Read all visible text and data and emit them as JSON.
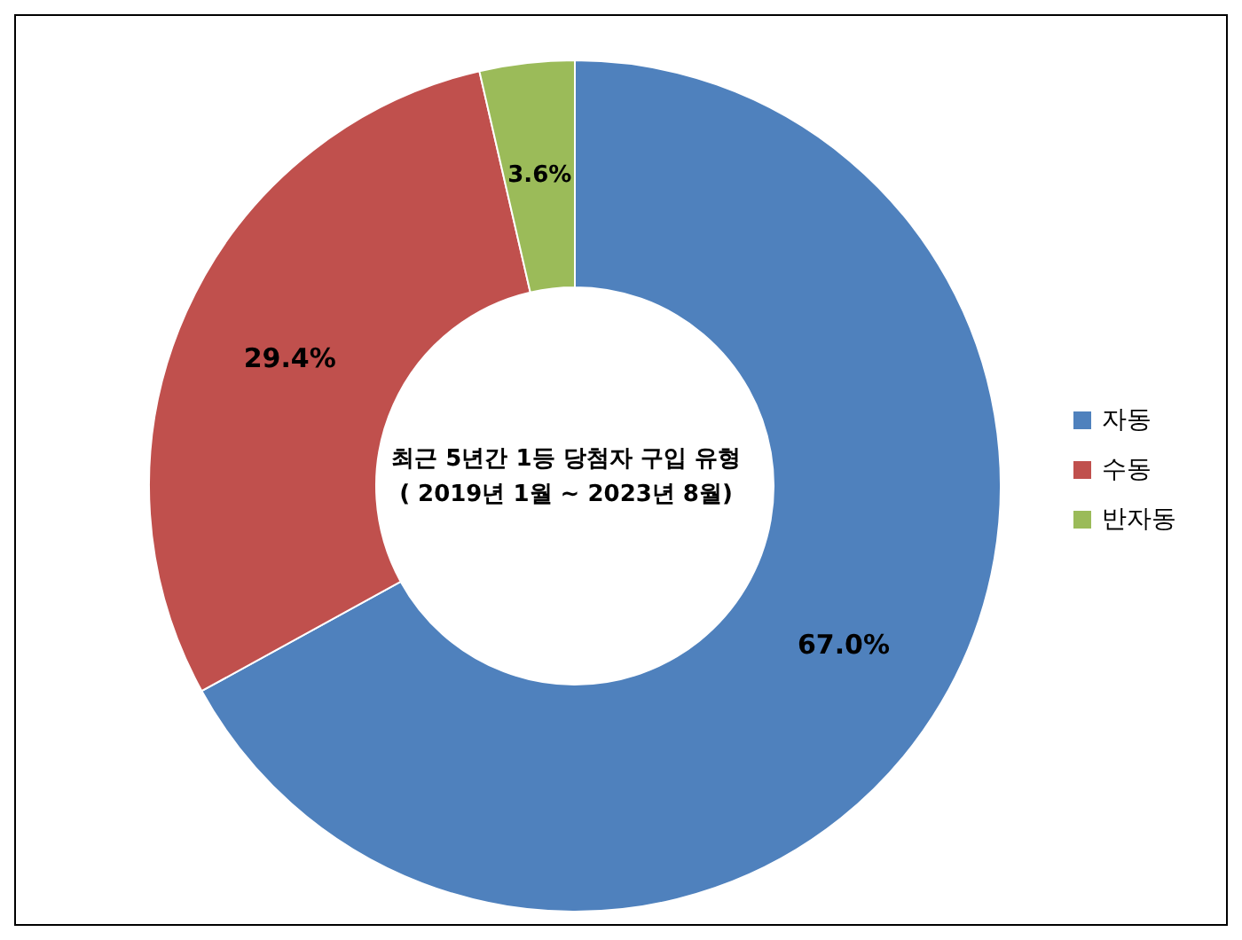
{
  "chart_data": {
    "type": "donut",
    "title": "최근 5년간 1등 당첨자 구입 유형",
    "subtitle": "( 2019년 1월 ~ 2023년 8월)",
    "categories": [
      "자동",
      "수동",
      "반자동"
    ],
    "values": [
      67.0,
      29.4,
      3.6
    ],
    "colors": [
      "#4f81bd",
      "#c0504d",
      "#9bbb59"
    ],
    "value_labels": [
      "67.0%",
      "29.4%",
      "3.6%"
    ],
    "legend": "right"
  }
}
